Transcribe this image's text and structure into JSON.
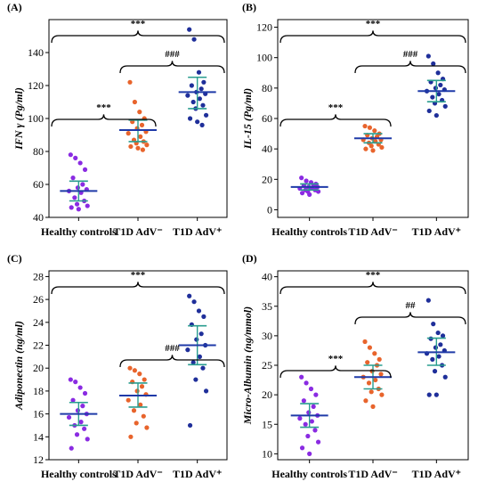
{
  "chart_data": [
    {
      "type": "scatter",
      "panel": "(A)",
      "ylabel": "IFN γ (Pg/ml)",
      "categories": [
        "Healthy controls",
        "T1D AdV⁻",
        "T1D AdV⁺"
      ],
      "ylim": [
        40,
        160
      ],
      "yticks": [
        40,
        60,
        80,
        100,
        120,
        140
      ],
      "grid": false,
      "groups": [
        {
          "category": "Healthy controls",
          "color": "#8a2be2",
          "mean": 56,
          "sd_low": 50,
          "sd_high": 62,
          "values": [
            78,
            76,
            73,
            69,
            64,
            60,
            58,
            57,
            56,
            55,
            52,
            50,
            48,
            47,
            46,
            45
          ]
        },
        {
          "category": "T1D AdV⁻",
          "color": "#e8642c",
          "mean": 93,
          "sd_low": 86,
          "sd_high": 99,
          "values": [
            122,
            110,
            104,
            100,
            98,
            96,
            94,
            92,
            91,
            89,
            87,
            86,
            85,
            84,
            83,
            82,
            81
          ]
        },
        {
          "category": "T1D AdV⁺",
          "color": "#1f2f9a",
          "mean": 116,
          "sd_low": 106,
          "sd_high": 125,
          "values": [
            154,
            148,
            128,
            122,
            120,
            118,
            116,
            115,
            114,
            112,
            110,
            108,
            106,
            102,
            100,
            98,
            96
          ]
        }
      ],
      "comparisons": [
        {
          "from": "Healthy controls",
          "to": "T1D AdV⁺",
          "label": "***",
          "level": 2
        },
        {
          "from": "T1D AdV⁻",
          "to": "T1D AdV⁺",
          "label": "###",
          "level": 1
        },
        {
          "from": "Healthy controls",
          "to": "T1D AdV⁻",
          "label": "***",
          "level": 0
        }
      ]
    },
    {
      "type": "scatter",
      "panel": "(B)",
      "ylabel": "IL-15 (Pg/ml)",
      "categories": [
        "Healthy controls",
        "T1D AdV⁻",
        "T1D AdV⁺"
      ],
      "ylim": [
        -5,
        125
      ],
      "yticks": [
        0,
        20,
        40,
        60,
        80,
        100,
        120
      ],
      "grid": false,
      "groups": [
        {
          "category": "Healthy controls",
          "color": "#8a2be2",
          "mean": 15,
          "sd_low": 13,
          "sd_high": 17,
          "values": [
            21,
            19,
            18,
            17,
            16,
            16,
            15,
            15,
            14,
            14,
            13,
            13,
            12,
            12,
            11,
            10
          ]
        },
        {
          "category": "T1D AdV⁻",
          "color": "#e8642c",
          "mean": 47,
          "sd_low": 44,
          "sd_high": 50,
          "values": [
            55,
            54,
            52,
            50,
            49,
            48,
            47,
            46,
            46,
            45,
            44,
            43,
            42,
            41,
            40,
            39
          ]
        },
        {
          "category": "T1D AdV⁺",
          "color": "#1f2f9a",
          "mean": 78,
          "sd_low": 71,
          "sd_high": 85,
          "values": [
            101,
            96,
            90,
            86,
            84,
            82,
            80,
            79,
            78,
            76,
            74,
            72,
            70,
            68,
            65,
            62
          ]
        }
      ],
      "comparisons": [
        {
          "from": "Healthy controls",
          "to": "T1D AdV⁺",
          "label": "***",
          "level": 2
        },
        {
          "from": "T1D AdV⁻",
          "to": "T1D AdV⁺",
          "label": "###",
          "level": 1
        },
        {
          "from": "Healthy controls",
          "to": "T1D AdV⁻",
          "label": "***",
          "level": 0
        }
      ]
    },
    {
      "type": "scatter",
      "panel": "(C)",
      "ylabel": "Adiponectin (ng/ml)",
      "categories": [
        "Healthy controls",
        "T1D AdV⁻",
        "T1D AdV⁺"
      ],
      "ylim": [
        12,
        28.5
      ],
      "yticks": [
        12,
        14,
        16,
        18,
        20,
        22,
        24,
        26,
        28
      ],
      "grid": false,
      "groups": [
        {
          "category": "Healthy controls",
          "color": "#8a2be2",
          "mean": 16,
          "sd_low": 15,
          "sd_high": 17,
          "values": [
            19,
            18.8,
            18.3,
            17.8,
            17.2,
            16.7,
            16.3,
            16,
            15.7,
            15.3,
            15,
            14.7,
            14.2,
            13.8,
            13
          ]
        },
        {
          "category": "T1D AdV⁻",
          "color": "#e8642c",
          "mean": 17.6,
          "sd_low": 16.6,
          "sd_high": 18.7,
          "values": [
            20,
            19.8,
            19.5,
            19,
            18.8,
            18.4,
            18,
            17.7,
            17.2,
            16.8,
            16.3,
            15.8,
            15.2,
            14.8,
            14
          ]
        },
        {
          "category": "T1D AdV⁺",
          "color": "#1f2f9a",
          "mean": 22,
          "sd_low": 20.3,
          "sd_high": 23.7,
          "values": [
            26.3,
            25.8,
            25,
            24.5,
            23.8,
            23,
            22.5,
            22,
            21.6,
            21,
            20.5,
            20,
            19,
            18,
            15
          ]
        }
      ],
      "comparisons": [
        {
          "from": "Healthy controls",
          "to": "T1D AdV⁺",
          "label": "***",
          "level": 2
        },
        {
          "from": "T1D AdV⁻",
          "to": "T1D AdV⁺",
          "label": "###",
          "level": 0
        }
      ]
    },
    {
      "type": "scatter",
      "panel": "(D)",
      "ylabel": "Micro-Albumin (ng/mmol)",
      "categories": [
        "Healthy controls",
        "T1D AdV⁻",
        "T1D AdV⁺"
      ],
      "ylim": [
        9,
        41
      ],
      "yticks": [
        10,
        15,
        20,
        25,
        30,
        35,
        40
      ],
      "grid": false,
      "groups": [
        {
          "category": "Healthy controls",
          "color": "#8a2be2",
          "mean": 16.5,
          "sd_low": 14.5,
          "sd_high": 18.5,
          "values": [
            23,
            22,
            21,
            20,
            19,
            18,
            17,
            16.5,
            16,
            15.5,
            15,
            14,
            13,
            12,
            11,
            10
          ]
        },
        {
          "category": "T1D AdV⁻",
          "color": "#e8642c",
          "mean": 23,
          "sd_low": 21,
          "sd_high": 25,
          "values": [
            29,
            28,
            27,
            26,
            25.5,
            25,
            24,
            23.5,
            23,
            22.5,
            22,
            21,
            20.5,
            20,
            19,
            18
          ]
        },
        {
          "category": "T1D AdV⁺",
          "color": "#1f2f9a",
          "mean": 27.2,
          "sd_low": 25,
          "sd_high": 29.6,
          "values": [
            36,
            32,
            30.5,
            30,
            29.5,
            28.5,
            28,
            27.5,
            27,
            26.5,
            26,
            25,
            24,
            23,
            20,
            20
          ]
        }
      ],
      "comparisons": [
        {
          "from": "Healthy controls",
          "to": "T1D AdV⁺",
          "label": "***",
          "level": 2
        },
        {
          "from": "T1D AdV⁻",
          "to": "T1D AdV⁺",
          "label": "##",
          "level": 1
        },
        {
          "from": "Healthy controls",
          "to": "T1D AdV⁻",
          "label": "***",
          "level": 0
        }
      ]
    }
  ]
}
